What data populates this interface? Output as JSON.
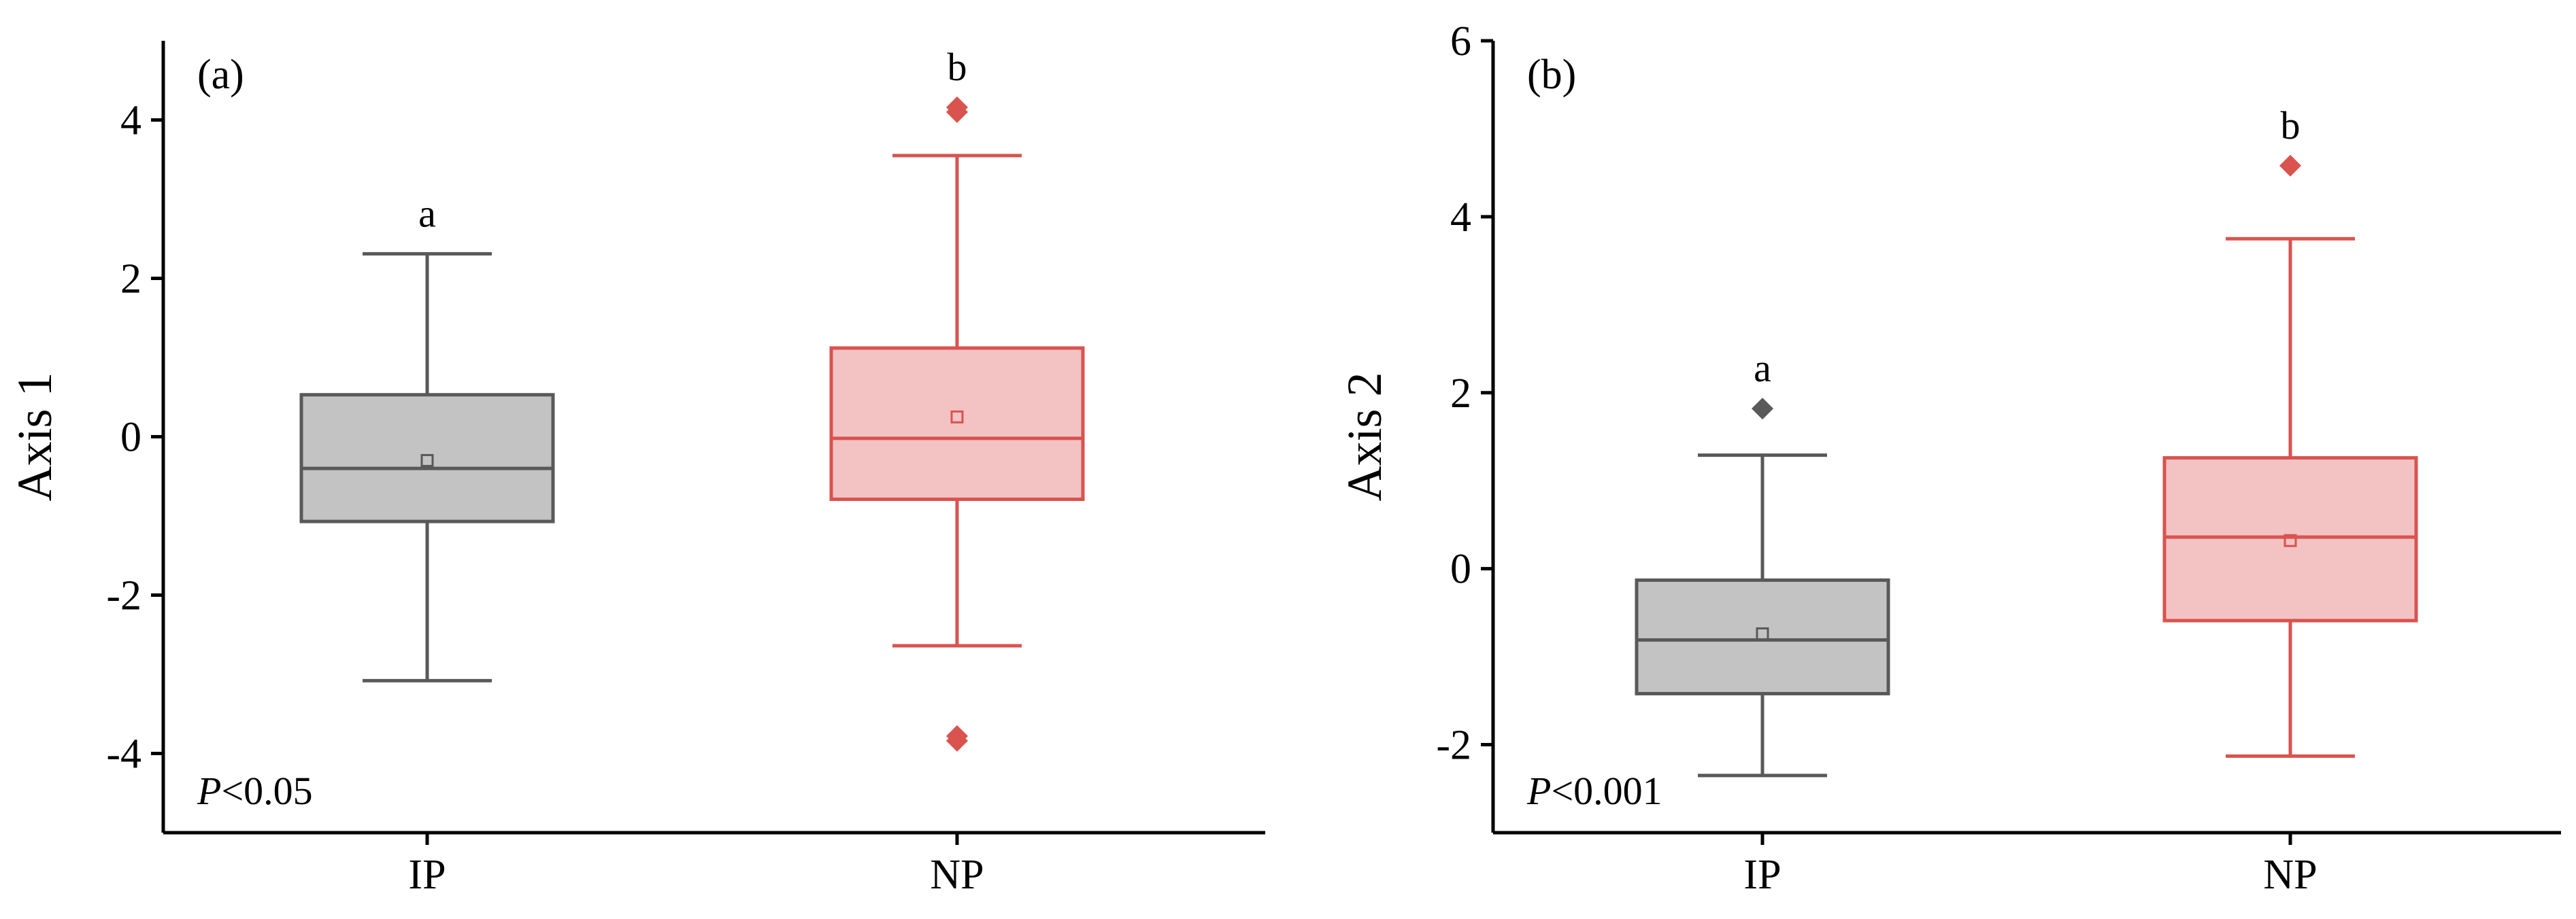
{
  "chart_data": [
    {
      "type": "box",
      "panel_label": "(a)",
      "ylabel": "Axis 1",
      "categories": [
        "IP",
        "NP"
      ],
      "ylim": [
        -5,
        5
      ],
      "yticks": [
        -4,
        -2,
        0,
        2,
        4
      ],
      "annotation": {
        "p_symbol": "P",
        "p_text": "<0.05"
      },
      "boxes": [
        {
          "category": "IP",
          "whisker_low": -3.08,
          "q1": -1.07,
          "median": -0.4,
          "q3": 0.53,
          "whisker_high": 2.31,
          "mean": -0.3,
          "outliers": [],
          "sig_letter": "a",
          "fill": "#c3c3c3",
          "stroke": "#595959"
        },
        {
          "category": "NP",
          "whisker_low": -2.64,
          "q1": -0.79,
          "median": -0.02,
          "q3": 1.12,
          "whisker_high": 3.55,
          "mean": 0.25,
          "outliers": [
            4.1,
            4.16,
            -3.78,
            -3.84
          ],
          "sig_letter": "b",
          "fill": "#f3c3c4",
          "stroke": "#d9534f"
        }
      ]
    },
    {
      "type": "box",
      "panel_label": "(b)",
      "ylabel": "Axis 2",
      "categories": [
        "IP",
        "NP"
      ],
      "ylim": [
        -3,
        6
      ],
      "yticks": [
        -2,
        0,
        2,
        4,
        6
      ],
      "annotation": {
        "p_symbol": "P",
        "p_text": "<0.001"
      },
      "boxes": [
        {
          "category": "IP",
          "whisker_low": -2.35,
          "q1": -1.42,
          "median": -0.81,
          "q3": -0.13,
          "whisker_high": 1.29,
          "mean": -0.74,
          "outliers": [
            1.82
          ],
          "sig_letter": "a",
          "fill": "#c3c3c3",
          "stroke": "#595959"
        },
        {
          "category": "NP",
          "whisker_low": -2.13,
          "q1": -0.59,
          "median": 0.36,
          "q3": 1.26,
          "whisker_high": 3.75,
          "mean": 0.32,
          "outliers": [
            4.58
          ],
          "sig_letter": "b",
          "fill": "#f3c3c4",
          "stroke": "#d9534f"
        }
      ]
    }
  ]
}
